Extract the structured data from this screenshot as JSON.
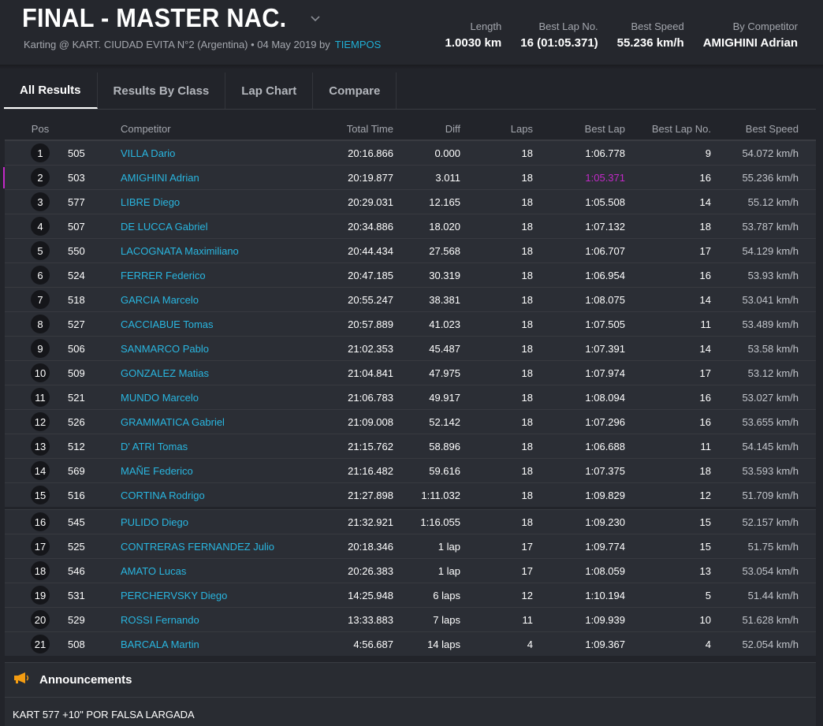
{
  "header": {
    "title": "FINAL - MASTER NAC.",
    "subtitle": "Karting @ KART. CIUDAD EVITA N°2 (Argentina) • 04 May 2019 by",
    "subtitle_link": "TIEMPOS",
    "stats": [
      {
        "label": "Length",
        "value": "1.0030 km"
      },
      {
        "label": "Best Lap No.",
        "value": "16 (01:05.371)"
      },
      {
        "label": "Best Speed",
        "value": "55.236 km/h"
      },
      {
        "label": "By Competitor",
        "value": "AMIGHINI Adrian"
      }
    ]
  },
  "tabs": [
    {
      "label": "All Results",
      "active": true
    },
    {
      "label": "Results By Class",
      "active": false
    },
    {
      "label": "Lap Chart",
      "active": false
    },
    {
      "label": "Compare",
      "active": false
    }
  ],
  "columns": {
    "pos": "Pos",
    "competitor": "Competitor",
    "total": "Total Time",
    "diff": "Diff",
    "laps": "Laps",
    "best": "Best Lap",
    "bestno": "Best Lap No.",
    "speed": "Best Speed"
  },
  "results": [
    {
      "pos": "1",
      "num": "505",
      "name": "VILLA Dario",
      "total": "20:16.866",
      "diff": "0.000",
      "laps": "18",
      "best": "1:06.778",
      "bestno": "9",
      "speed": "54.072 km/h"
    },
    {
      "pos": "2",
      "num": "503",
      "name": "AMIGHINI Adrian",
      "total": "20:19.877",
      "diff": "3.011",
      "laps": "18",
      "best": "1:05.371",
      "bestno": "16",
      "speed": "55.236 km/h",
      "highlight": true
    },
    {
      "pos": "3",
      "num": "577",
      "name": "LIBRE Diego",
      "total": "20:29.031",
      "diff": "12.165",
      "laps": "18",
      "best": "1:05.508",
      "bestno": "14",
      "speed": "55.12 km/h"
    },
    {
      "pos": "4",
      "num": "507",
      "name": "DE LUCCA Gabriel",
      "total": "20:34.886",
      "diff": "18.020",
      "laps": "18",
      "best": "1:07.132",
      "bestno": "18",
      "speed": "53.787 km/h"
    },
    {
      "pos": "5",
      "num": "550",
      "name": "LACOGNATA Maximiliano",
      "total": "20:44.434",
      "diff": "27.568",
      "laps": "18",
      "best": "1:06.707",
      "bestno": "17",
      "speed": "54.129 km/h"
    },
    {
      "pos": "6",
      "num": "524",
      "name": "FERRER Federico",
      "total": "20:47.185",
      "diff": "30.319",
      "laps": "18",
      "best": "1:06.954",
      "bestno": "16",
      "speed": "53.93 km/h"
    },
    {
      "pos": "7",
      "num": "518",
      "name": "GARCIA Marcelo",
      "total": "20:55.247",
      "diff": "38.381",
      "laps": "18",
      "best": "1:08.075",
      "bestno": "14",
      "speed": "53.041 km/h"
    },
    {
      "pos": "8",
      "num": "527",
      "name": "CACCIABUE Tomas",
      "total": "20:57.889",
      "diff": "41.023",
      "laps": "18",
      "best": "1:07.505",
      "bestno": "11",
      "speed": "53.489 km/h"
    },
    {
      "pos": "9",
      "num": "506",
      "name": "SANMARCO Pablo",
      "total": "21:02.353",
      "diff": "45.487",
      "laps": "18",
      "best": "1:07.391",
      "bestno": "14",
      "speed": "53.58 km/h"
    },
    {
      "pos": "10",
      "num": "509",
      "name": "GONZALEZ Matias",
      "total": "21:04.841",
      "diff": "47.975",
      "laps": "18",
      "best": "1:07.974",
      "bestno": "17",
      "speed": "53.12 km/h"
    },
    {
      "pos": "11",
      "num": "521",
      "name": "MUNDO Marcelo",
      "total": "21:06.783",
      "diff": "49.917",
      "laps": "18",
      "best": "1:08.094",
      "bestno": "16",
      "speed": "53.027 km/h"
    },
    {
      "pos": "12",
      "num": "526",
      "name": "GRAMMATICA Gabriel",
      "total": "21:09.008",
      "diff": "52.142",
      "laps": "18",
      "best": "1:07.296",
      "bestno": "16",
      "speed": "53.655 km/h"
    },
    {
      "pos": "13",
      "num": "512",
      "name": "D' ATRI Tomas",
      "total": "21:15.762",
      "diff": "58.896",
      "laps": "18",
      "best": "1:06.688",
      "bestno": "11",
      "speed": "54.145 km/h"
    },
    {
      "pos": "14",
      "num": "569",
      "name": "MAÑE Federico",
      "total": "21:16.482",
      "diff": "59.616",
      "laps": "18",
      "best": "1:07.375",
      "bestno": "18",
      "speed": "53.593 km/h"
    },
    {
      "pos": "15",
      "num": "516",
      "name": "CORTINA Rodrigo",
      "total": "21:27.898",
      "diff": "1:11.032",
      "laps": "18",
      "best": "1:09.829",
      "bestno": "12",
      "speed": "51.709 km/h"
    },
    {
      "pos": "16",
      "num": "545",
      "name": "PULIDO Diego",
      "total": "21:32.921",
      "diff": "1:16.055",
      "laps": "18",
      "best": "1:09.230",
      "bestno": "15",
      "speed": "52.157 km/h",
      "sep": true
    },
    {
      "pos": "17",
      "num": "525",
      "name": "CONTRERAS FERNANDEZ Julio",
      "total": "20:18.346",
      "diff": "1 lap",
      "laps": "17",
      "best": "1:09.774",
      "bestno": "15",
      "speed": "51.75 km/h"
    },
    {
      "pos": "18",
      "num": "546",
      "name": "AMATO Lucas",
      "total": "20:26.383",
      "diff": "1 lap",
      "laps": "17",
      "best": "1:08.059",
      "bestno": "13",
      "speed": "53.054 km/h"
    },
    {
      "pos": "19",
      "num": "531",
      "name": "PERCHERVSKY Diego",
      "total": "14:25.948",
      "diff": "6 laps",
      "laps": "12",
      "best": "1:10.194",
      "bestno": "5",
      "speed": "51.44 km/h"
    },
    {
      "pos": "20",
      "num": "529",
      "name": "ROSSI Fernando",
      "total": "13:33.883",
      "diff": "7 laps",
      "laps": "11",
      "best": "1:09.939",
      "bestno": "10",
      "speed": "51.628 km/h"
    },
    {
      "pos": "21",
      "num": "508",
      "name": "BARCALA Martin",
      "total": "4:56.687",
      "diff": "14 laps",
      "laps": "4",
      "best": "1:09.367",
      "bestno": "4",
      "speed": "52.054 km/h"
    }
  ],
  "announcements": {
    "title": "Announcements",
    "icon": "megaphone-icon",
    "text": "KART 577 +10\" POR FALSA LARGADA"
  },
  "colors": {
    "background": "#22242a",
    "link": "#29b6e0",
    "best_lap_highlight": "#c229c8",
    "megaphone": "#f39c12"
  }
}
